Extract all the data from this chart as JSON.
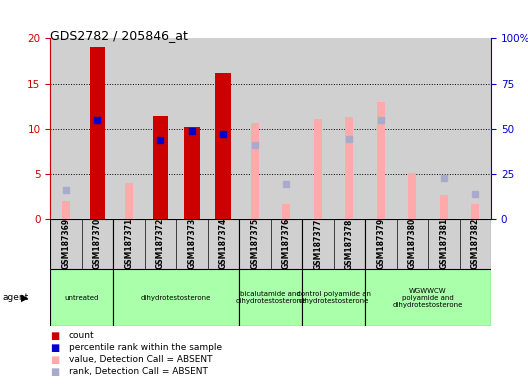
{
  "title": "GDS2782 / 205846_at",
  "samples": [
    "GSM187369",
    "GSM187370",
    "GSM187371",
    "GSM187372",
    "GSM187373",
    "GSM187374",
    "GSM187375",
    "GSM187376",
    "GSM187377",
    "GSM187378",
    "GSM187379",
    "GSM187380",
    "GSM187381",
    "GSM187382"
  ],
  "count": [
    null,
    19.0,
    null,
    11.4,
    10.2,
    16.2,
    null,
    null,
    null,
    null,
    null,
    null,
    null,
    null
  ],
  "percentile_rank": [
    null,
    55.0,
    null,
    43.5,
    48.5,
    47.0,
    null,
    null,
    null,
    null,
    null,
    null,
    null,
    null
  ],
  "value_absent": [
    10.0,
    null,
    20.0,
    null,
    null,
    null,
    53.0,
    8.5,
    55.5,
    56.5,
    64.5,
    25.5,
    13.5,
    8.0
  ],
  "rank_absent": [
    16.0,
    null,
    null,
    null,
    null,
    null,
    41.0,
    19.5,
    null,
    44.0,
    55.0,
    null,
    22.5,
    14.0
  ],
  "agent_groups": [
    {
      "indices": [
        0,
        1
      ],
      "label": "untreated"
    },
    {
      "indices": [
        2,
        3,
        4,
        5
      ],
      "label": "dihydrotestosterone"
    },
    {
      "indices": [
        6,
        7
      ],
      "label": "bicalutamide and\ndihydrotestosterone"
    },
    {
      "indices": [
        8,
        9
      ],
      "label": "control polyamide an\ndihydrotestosterone"
    },
    {
      "indices": [
        10,
        11,
        12,
        13
      ],
      "label": "WGWWCW\npolyamide and\ndihydrotestosterone"
    }
  ],
  "color_count": "#cc0000",
  "color_rank": "#0000cc",
  "color_value_absent": "#ffaaaa",
  "color_rank_absent": "#aaaacc",
  "agent_color": "#aaffaa",
  "sample_bg_color": "#d0d0d0",
  "plot_bg": "#ffffff"
}
